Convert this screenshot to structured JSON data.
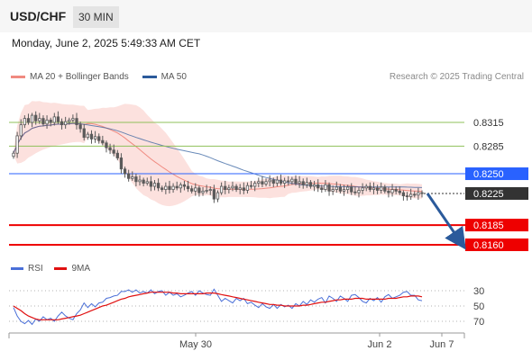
{
  "header": {
    "symbol": "USD/CHF",
    "interval": "30 MIN"
  },
  "datetime": "Monday, June 2, 2025 5:49:33 AM CET",
  "legend": {
    "ma20_label": "MA 20 + Bollinger Bands",
    "ma50_label": "MA 50",
    "ma20_color": "#f08a80",
    "ma50_color": "#2b5a9b"
  },
  "credit": "Research © 2025 Trading Central",
  "rsi_legend": {
    "rsi_label": "RSI",
    "ma_label": "9MA",
    "rsi_color": "#4a6fd8",
    "ma_color": "#e01010"
  },
  "levels": [
    {
      "value": "0.8315",
      "kind": "target",
      "color": "#8fc05a"
    },
    {
      "value": "0.8285",
      "kind": "target",
      "color": "#8fc05a"
    },
    {
      "value": "0.8250",
      "kind": "pivot",
      "color": "#2962ff"
    },
    {
      "value": "0.8225",
      "kind": "last",
      "color": "#333333"
    },
    {
      "value": "0.8185",
      "kind": "support",
      "color": "#ee0000"
    },
    {
      "value": "0.8160",
      "kind": "support",
      "color": "#ee0000"
    }
  ],
  "rsi_ticks": [
    "70",
    "50",
    "30"
  ],
  "x_labels": [
    "May 30",
    "Jun 2",
    "Jun 7"
  ],
  "chart_data": {
    "type": "candlestick",
    "price_range": [
      0.815,
      0.835
    ],
    "candle_color_up": "#5a5a5a",
    "candle_color_down": "#5a5a5a",
    "closes": [
      0.8276,
      0.8298,
      0.8312,
      0.832,
      0.8315,
      0.8324,
      0.8317,
      0.832,
      0.8313,
      0.8318,
      0.8315,
      0.8322,
      0.8316,
      0.8312,
      0.8316,
      0.8318,
      0.832,
      0.8312,
      0.8307,
      0.8296,
      0.83,
      0.8294,
      0.8297,
      0.8292,
      0.8289,
      0.8283,
      0.828,
      0.8276,
      0.827,
      0.8256,
      0.825,
      0.8244,
      0.8246,
      0.824,
      0.8242,
      0.8238,
      0.824,
      0.8234,
      0.8238,
      0.8232,
      0.823,
      0.8234,
      0.823,
      0.8234,
      0.8232,
      0.8236,
      0.8234,
      0.8231,
      0.8228,
      0.8232,
      0.8226,
      0.8228,
      0.8229,
      0.823,
      0.8218,
      0.8226,
      0.8234,
      0.823,
      0.8232,
      0.8234,
      0.823,
      0.8232,
      0.8229,
      0.8235,
      0.8234,
      0.8238,
      0.824,
      0.8237,
      0.824,
      0.8242,
      0.8238,
      0.8242,
      0.8238,
      0.8241,
      0.824,
      0.8243,
      0.8238,
      0.824,
      0.8236,
      0.8239,
      0.8234,
      0.8236,
      0.8232,
      0.823,
      0.8236,
      0.8228,
      0.823,
      0.8233,
      0.8228,
      0.823,
      0.8233,
      0.8227,
      0.8226,
      0.8229,
      0.8232,
      0.8234,
      0.823,
      0.8232,
      0.8229,
      0.8233,
      0.8228,
      0.8226,
      0.823,
      0.8228,
      0.8226,
      0.8222,
      0.8221,
      0.8224,
      0.8223,
      0.8226,
      0.8225
    ],
    "rsi": [
      52,
      63,
      70,
      73,
      69,
      74,
      67,
      70,
      64,
      68,
      66,
      70,
      63,
      58,
      63,
      66,
      68,
      60,
      55,
      46,
      52,
      47,
      51,
      46,
      45,
      40,
      39,
      37,
      36,
      31,
      31,
      29,
      32,
      29,
      33,
      31,
      33,
      29,
      34,
      31,
      30,
      36,
      32,
      36,
      34,
      38,
      36,
      33,
      31,
      36,
      30,
      33,
      35,
      36,
      28,
      36,
      44,
      40,
      43,
      46,
      40,
      43,
      40,
      47,
      45,
      49,
      52,
      47,
      51,
      53,
      48,
      53,
      48,
      51,
      49,
      53,
      47,
      50,
      44,
      48,
      42,
      45,
      41,
      39,
      46,
      37,
      40,
      44,
      37,
      40,
      44,
      36,
      35,
      39,
      44,
      46,
      40,
      43,
      39,
      45,
      38,
      35,
      40,
      38,
      36,
      32,
      31,
      36,
      36,
      42,
      43
    ],
    "rsi_ma": [
      50,
      53,
      56,
      60,
      63,
      65,
      67,
      68,
      68,
      68,
      68,
      68,
      68,
      67,
      66,
      65,
      64,
      63,
      62,
      60,
      58,
      56,
      54,
      52,
      50,
      49,
      47,
      45,
      43,
      41,
      40,
      38,
      37,
      36,
      35,
      34,
      33,
      32,
      32,
      32,
      32,
      32,
      32,
      33,
      33,
      34,
      34,
      34,
      34,
      34,
      34,
      34,
      33,
      33,
      33,
      34,
      35,
      36,
      37,
      38,
      39,
      40,
      41,
      42,
      43,
      44,
      45,
      46,
      47,
      48,
      48,
      49,
      49,
      50,
      50,
      50,
      50,
      50,
      49,
      49,
      48,
      47,
      46,
      45,
      45,
      44,
      43,
      42,
      42,
      41,
      41,
      41,
      40,
      40,
      40,
      41,
      41,
      41,
      41,
      41,
      41,
      40,
      40,
      40,
      39,
      38,
      38,
      37,
      37,
      37,
      38
    ],
    "x_ticks": [
      "May 30",
      "Jun 2",
      "Jun 7"
    ]
  }
}
